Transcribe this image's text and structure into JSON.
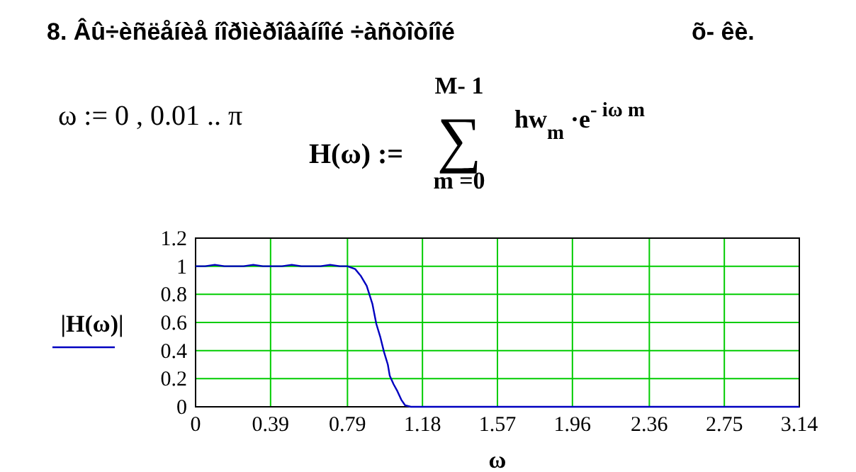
{
  "chart_data": {
    "type": "line",
    "title": "8. Âû÷èñëåíèå íîðìèðîâàííîé ÷àñòîòíîé",
    "subtitle": "õ- êè.",
    "xlabel": "ω",
    "ylabel": "|H(ω)|",
    "annotations": [
      "ω := 0 , 0.01 .. π",
      "H(ω) :=",
      "M- 1",
      "∑",
      "m  =0",
      "hw$_{m}$ ·e$^{- iω m}$"
    ],
    "x": [
      0,
      0.05,
      0.1,
      0.15,
      0.2,
      0.25,
      0.3,
      0.35,
      0.4,
      0.45,
      0.5,
      0.55,
      0.6,
      0.65,
      0.7,
      0.75,
      0.79,
      0.83,
      0.86,
      0.89,
      0.92,
      0.94,
      0.96,
      0.98,
      1.0,
      1.01,
      1.03,
      1.05,
      1.07,
      1.09,
      1.12,
      1.2,
      1.5,
      2.0,
      2.5,
      3.14
    ],
    "series": [
      {
        "color": "#0000c0",
        "values": [
          1,
          1,
          1.01,
          1,
          1,
          1,
          1.01,
          1,
          1,
          1,
          1.01,
          1,
          1,
          1,
          1.01,
          1,
          1,
          0.98,
          0.93,
          0.86,
          0.73,
          0.59,
          0.5,
          0.39,
          0.3,
          0.22,
          0.16,
          0.11,
          0.05,
          0.01,
          0,
          0,
          0,
          0,
          0,
          0
        ]
      }
    ],
    "xlim": [
      0,
      3.14
    ],
    "xticks": [
      0,
      0.39,
      0.79,
      1.18,
      1.57,
      1.96,
      2.36,
      2.75,
      3.14
    ],
    "ylim": [
      0,
      1.2
    ],
    "yticks": [
      0,
      0.2,
      0.4,
      0.6,
      0.8,
      1,
      1.2
    ],
    "grid": true,
    "marker": "none",
    "line_style": "solid"
  }
}
